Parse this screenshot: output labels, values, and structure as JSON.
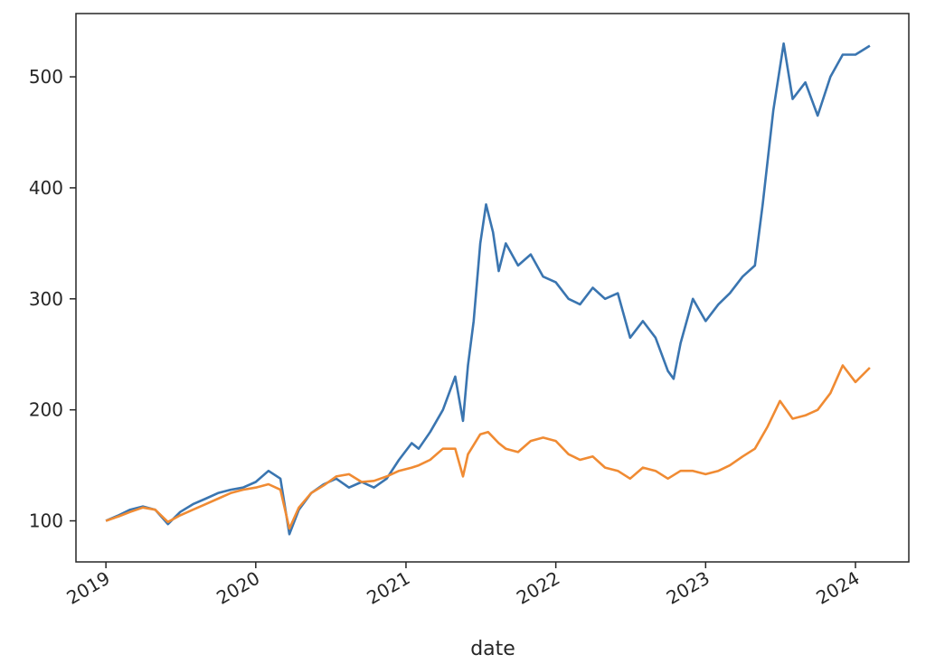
{
  "chart_data": {
    "type": "line",
    "title": "",
    "xlabel": "date",
    "ylabel": "",
    "x_ticks": [
      "2019",
      "2020",
      "2021",
      "2022",
      "2023",
      "2024"
    ],
    "y_ticks": [
      100,
      200,
      300,
      400,
      500
    ],
    "xlim": [
      "2018-10-20",
      "2024-05-10"
    ],
    "ylim": [
      63,
      557
    ],
    "grid": false,
    "legend": "none",
    "series": [
      {
        "color": "#3a75b0",
        "points": [
          [
            "2019-01-01",
            100
          ],
          [
            "2019-02-01",
            105
          ],
          [
            "2019-03-01",
            110
          ],
          [
            "2019-04-01",
            113
          ],
          [
            "2019-05-01",
            110
          ],
          [
            "2019-06-01",
            97
          ],
          [
            "2019-07-01",
            108
          ],
          [
            "2019-08-01",
            115
          ],
          [
            "2019-09-01",
            120
          ],
          [
            "2019-10-01",
            125
          ],
          [
            "2019-11-01",
            128
          ],
          [
            "2019-12-01",
            130
          ],
          [
            "2020-01-01",
            135
          ],
          [
            "2020-02-01",
            145
          ],
          [
            "2020-03-01",
            138
          ],
          [
            "2020-03-23",
            88
          ],
          [
            "2020-04-15",
            110
          ],
          [
            "2020-05-15",
            125
          ],
          [
            "2020-06-15",
            133
          ],
          [
            "2020-07-15",
            138
          ],
          [
            "2020-08-15",
            130
          ],
          [
            "2020-09-15",
            135
          ],
          [
            "2020-10-15",
            130
          ],
          [
            "2020-11-15",
            138
          ],
          [
            "2020-12-15",
            155
          ],
          [
            "2021-01-15",
            170
          ],
          [
            "2021-02-01",
            165
          ],
          [
            "2021-03-01",
            180
          ],
          [
            "2021-04-01",
            200
          ],
          [
            "2021-05-01",
            230
          ],
          [
            "2021-05-20",
            190
          ],
          [
            "2021-06-01",
            240
          ],
          [
            "2021-06-15",
            280
          ],
          [
            "2021-07-01",
            350
          ],
          [
            "2021-07-15",
            385
          ],
          [
            "2021-08-01",
            360
          ],
          [
            "2021-08-15",
            325
          ],
          [
            "2021-09-01",
            350
          ],
          [
            "2021-10-01",
            330
          ],
          [
            "2021-11-01",
            340
          ],
          [
            "2021-12-01",
            320
          ],
          [
            "2022-01-01",
            315
          ],
          [
            "2022-02-01",
            300
          ],
          [
            "2022-03-01",
            295
          ],
          [
            "2022-04-01",
            310
          ],
          [
            "2022-05-01",
            300
          ],
          [
            "2022-06-01",
            305
          ],
          [
            "2022-07-01",
            265
          ],
          [
            "2022-08-01",
            280
          ],
          [
            "2022-09-01",
            265
          ],
          [
            "2022-10-01",
            235
          ],
          [
            "2022-10-15",
            228
          ],
          [
            "2022-11-01",
            260
          ],
          [
            "2022-12-01",
            300
          ],
          [
            "2023-01-01",
            280
          ],
          [
            "2023-02-01",
            295
          ],
          [
            "2023-03-01",
            305
          ],
          [
            "2023-04-01",
            320
          ],
          [
            "2023-05-01",
            330
          ],
          [
            "2023-05-20",
            385
          ],
          [
            "2023-06-15",
            470
          ],
          [
            "2023-07-10",
            530
          ],
          [
            "2023-08-01",
            480
          ],
          [
            "2023-09-01",
            495
          ],
          [
            "2023-10-01",
            465
          ],
          [
            "2023-11-01",
            500
          ],
          [
            "2023-12-01",
            520
          ],
          [
            "2024-01-01",
            520
          ],
          [
            "2024-02-05",
            528
          ]
        ]
      },
      {
        "color": "#f08b33",
        "points": [
          [
            "2019-01-01",
            100
          ],
          [
            "2019-02-01",
            104
          ],
          [
            "2019-03-01",
            108
          ],
          [
            "2019-04-01",
            112
          ],
          [
            "2019-05-01",
            110
          ],
          [
            "2019-06-01",
            99
          ],
          [
            "2019-07-01",
            105
          ],
          [
            "2019-08-01",
            110
          ],
          [
            "2019-09-01",
            115
          ],
          [
            "2019-10-01",
            120
          ],
          [
            "2019-11-01",
            125
          ],
          [
            "2019-12-01",
            128
          ],
          [
            "2020-01-01",
            130
          ],
          [
            "2020-02-01",
            133
          ],
          [
            "2020-03-01",
            128
          ],
          [
            "2020-03-23",
            93
          ],
          [
            "2020-04-15",
            112
          ],
          [
            "2020-05-15",
            125
          ],
          [
            "2020-06-15",
            132
          ],
          [
            "2020-07-15",
            140
          ],
          [
            "2020-08-15",
            142
          ],
          [
            "2020-09-15",
            135
          ],
          [
            "2020-10-15",
            136
          ],
          [
            "2020-11-15",
            140
          ],
          [
            "2020-12-15",
            145
          ],
          [
            "2021-01-15",
            148
          ],
          [
            "2021-02-01",
            150
          ],
          [
            "2021-03-01",
            155
          ],
          [
            "2021-04-01",
            165
          ],
          [
            "2021-05-01",
            165
          ],
          [
            "2021-05-20",
            140
          ],
          [
            "2021-06-01",
            160
          ],
          [
            "2021-07-01",
            178
          ],
          [
            "2021-07-20",
            180
          ],
          [
            "2021-08-15",
            170
          ],
          [
            "2021-09-01",
            165
          ],
          [
            "2021-10-01",
            162
          ],
          [
            "2021-11-01",
            172
          ],
          [
            "2021-12-01",
            175
          ],
          [
            "2022-01-01",
            172
          ],
          [
            "2022-02-01",
            160
          ],
          [
            "2022-03-01",
            155
          ],
          [
            "2022-04-01",
            158
          ],
          [
            "2022-05-01",
            148
          ],
          [
            "2022-06-01",
            145
          ],
          [
            "2022-07-01",
            138
          ],
          [
            "2022-08-01",
            148
          ],
          [
            "2022-09-01",
            145
          ],
          [
            "2022-10-01",
            138
          ],
          [
            "2022-11-01",
            145
          ],
          [
            "2022-12-01",
            145
          ],
          [
            "2023-01-01",
            142
          ],
          [
            "2023-02-01",
            145
          ],
          [
            "2023-03-01",
            150
          ],
          [
            "2023-04-01",
            158
          ],
          [
            "2023-05-01",
            165
          ],
          [
            "2023-06-01",
            185
          ],
          [
            "2023-07-01",
            208
          ],
          [
            "2023-08-01",
            192
          ],
          [
            "2023-09-01",
            195
          ],
          [
            "2023-10-01",
            200
          ],
          [
            "2023-11-01",
            215
          ],
          [
            "2023-12-01",
            240
          ],
          [
            "2024-01-01",
            225
          ],
          [
            "2024-02-05",
            238
          ]
        ]
      }
    ]
  }
}
